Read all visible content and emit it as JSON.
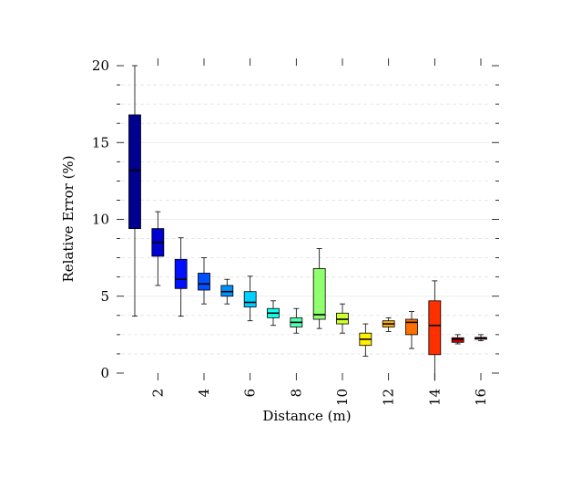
{
  "chart_data": {
    "type": "box",
    "xlabel": "Distance (m)",
    "ylabel": "Relative Error (%)",
    "xlim": [
      1,
      17
    ],
    "ylim": [
      0,
      20
    ],
    "xticks": [
      2,
      4,
      6,
      8,
      10,
      12,
      14,
      16
    ],
    "yticks": [
      0,
      5,
      10,
      15,
      20
    ],
    "grid": "horizontal",
    "colormap": "jet",
    "boxes": [
      {
        "x": 1,
        "whisker_low": 3.7,
        "q1": 9.4,
        "median": 13.2,
        "q3": 16.8,
        "whisker_high": 20.0,
        "color": "#00008f"
      },
      {
        "x": 2,
        "whisker_low": 5.7,
        "q1": 7.6,
        "median": 8.5,
        "q3": 9.4,
        "whisker_high": 10.5,
        "color": "#0000cf"
      },
      {
        "x": 3,
        "whisker_low": 3.7,
        "q1": 5.5,
        "median": 6.1,
        "q3": 7.4,
        "whisker_high": 8.8,
        "color": "#0010ff"
      },
      {
        "x": 4,
        "whisker_low": 4.5,
        "q1": 5.4,
        "median": 5.8,
        "q3": 6.5,
        "whisker_high": 7.5,
        "color": "#0050ff"
      },
      {
        "x": 5,
        "whisker_low": 4.5,
        "q1": 5.0,
        "median": 5.3,
        "q3": 5.7,
        "whisker_high": 6.1,
        "color": "#0090ff"
      },
      {
        "x": 6,
        "whisker_low": 3.4,
        "q1": 4.3,
        "median": 4.6,
        "q3": 5.3,
        "whisker_high": 6.3,
        "color": "#00d0ff"
      },
      {
        "x": 7,
        "whisker_low": 3.1,
        "q1": 3.6,
        "median": 3.9,
        "q3": 4.2,
        "whisker_high": 4.7,
        "color": "#10ffef"
      },
      {
        "x": 8,
        "whisker_low": 2.6,
        "q1": 3.0,
        "median": 3.3,
        "q3": 3.6,
        "whisker_high": 4.2,
        "color": "#50ffaf"
      },
      {
        "x": 9,
        "whisker_low": 2.9,
        "q1": 3.5,
        "median": 3.8,
        "q3": 6.8,
        "whisker_high": 8.1,
        "color": "#90ff70"
      },
      {
        "x": 10,
        "whisker_low": 2.6,
        "q1": 3.2,
        "median": 3.5,
        "q3": 3.9,
        "whisker_high": 4.5,
        "color": "#cfff30"
      },
      {
        "x": 11,
        "whisker_low": 1.1,
        "q1": 1.8,
        "median": 2.2,
        "q3": 2.6,
        "whisker_high": 3.2,
        "color": "#ffef00"
      },
      {
        "x": 12,
        "whisker_low": 2.7,
        "q1": 3.0,
        "median": 3.2,
        "q3": 3.4,
        "whisker_high": 3.6,
        "color": "#ffb000"
      },
      {
        "x": 13,
        "whisker_low": 1.6,
        "q1": 2.5,
        "median": 3.3,
        "q3": 3.5,
        "whisker_high": 4.0,
        "color": "#ff7000"
      },
      {
        "x": 14,
        "whisker_low": -0.5,
        "q1": 1.2,
        "median": 3.1,
        "q3": 4.7,
        "whisker_high": 6.0,
        "color": "#ff3000"
      },
      {
        "x": 15,
        "whisker_low": 1.9,
        "q1": 2.0,
        "median": 2.2,
        "q3": 2.3,
        "whisker_high": 2.5,
        "color": "#cf0000"
      },
      {
        "x": 16,
        "whisker_low": 2.1,
        "q1": 2.2,
        "median": 2.3,
        "q3": 2.3,
        "whisker_high": 2.5,
        "color": "#8f0000"
      }
    ]
  }
}
